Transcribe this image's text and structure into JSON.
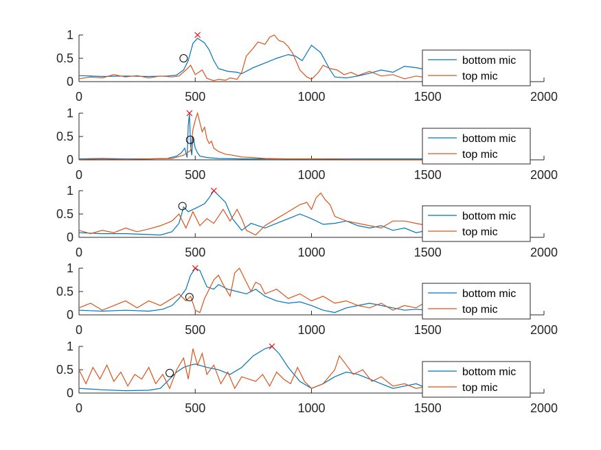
{
  "colors": {
    "bottom_mic": "#0072BD",
    "top_mic": "#D95319",
    "peak_marker": "#FF0000",
    "onset_marker": "#000000",
    "axis": "#262626"
  },
  "chart_data": [
    {
      "type": "line",
      "xlim": [
        0,
        2000
      ],
      "ylim": [
        0,
        1
      ],
      "xticks": [
        "0",
        "500",
        "1000",
        "1500",
        "2000"
      ],
      "yticks": [
        "0",
        "0.5",
        "1"
      ],
      "legend": "right",
      "series": [
        {
          "name": "bottom mic",
          "x": [
            0,
            100,
            200,
            300,
            380,
            420,
            450,
            470,
            490,
            510,
            540,
            560,
            580,
            600,
            640,
            680,
            700,
            750,
            800,
            850,
            900,
            930,
            960,
            1000,
            1040,
            1080,
            1100,
            1150,
            1200,
            1250,
            1300,
            1350,
            1400,
            1450,
            1500
          ],
          "y": [
            0.13,
            0.11,
            0.12,
            0.11,
            0.12,
            0.14,
            0.25,
            0.45,
            0.82,
            0.93,
            0.83,
            0.68,
            0.45,
            0.28,
            0.22,
            0.2,
            0.17,
            0.3,
            0.4,
            0.5,
            0.58,
            0.55,
            0.45,
            0.78,
            0.62,
            0.25,
            0.1,
            0.08,
            0.12,
            0.18,
            0.25,
            0.2,
            0.33,
            0.3,
            0.25
          ]
        },
        {
          "name": "top mic",
          "x": [
            0,
            50,
            100,
            150,
            200,
            250,
            300,
            350,
            400,
            430,
            460,
            480,
            500,
            530,
            550,
            580,
            600,
            630,
            650,
            680,
            700,
            720,
            750,
            770,
            800,
            820,
            840,
            860,
            880,
            900,
            920,
            950,
            980,
            1000,
            1030,
            1050,
            1080,
            1110,
            1140,
            1170,
            1200,
            1250,
            1300,
            1350,
            1400,
            1450,
            1500
          ],
          "y": [
            0.06,
            0.1,
            0.08,
            0.15,
            0.1,
            0.13,
            0.08,
            0.12,
            0.1,
            0.12,
            0.25,
            0.35,
            0.15,
            0.25,
            0.07,
            0.02,
            0.05,
            0.03,
            0.08,
            0.05,
            0.2,
            0.55,
            0.72,
            0.85,
            0.8,
            0.95,
            1.0,
            0.88,
            0.85,
            0.75,
            0.6,
            0.25,
            0.1,
            0.05,
            0.2,
            0.35,
            0.28,
            0.25,
            0.15,
            0.2,
            0.13,
            0.22,
            0.12,
            0.15,
            0.06,
            0.12,
            0.08
          ]
        }
      ],
      "peak": {
        "x": 510,
        "y": 1.0
      },
      "onset": {
        "x": 450,
        "y": 0.5
      }
    },
    {
      "type": "line",
      "xlim": [
        0,
        2000
      ],
      "ylim": [
        0,
        1
      ],
      "xticks": [
        "0",
        "500",
        "1000",
        "1500",
        "2000"
      ],
      "yticks": [
        "0",
        "0.5",
        "1"
      ],
      "legend": "right",
      "series": [
        {
          "name": "bottom mic",
          "x": [
            0,
            100,
            200,
            300,
            380,
            420,
            440,
            455,
            465,
            470,
            475,
            480,
            485,
            490,
            500,
            510,
            520,
            550,
            600,
            700,
            800,
            1000,
            1200,
            1500
          ],
          "y": [
            0.02,
            0.03,
            0.02,
            0.02,
            0.03,
            0.08,
            0.15,
            0.25,
            0.05,
            0.75,
            0.98,
            0.3,
            0.1,
            0.5,
            0.25,
            0.15,
            0.08,
            0.05,
            0.03,
            0.02,
            0.02,
            0.02,
            0.02,
            0.02
          ]
        },
        {
          "name": "top mic",
          "x": [
            0,
            100,
            200,
            300,
            400,
            450,
            480,
            490,
            500,
            510,
            520,
            530,
            540,
            550,
            560,
            570,
            580,
            600,
            630,
            660,
            700,
            750,
            800,
            900,
            1000,
            1200,
            1500
          ],
          "y": [
            0.01,
            0.02,
            0.01,
            0.02,
            0.03,
            0.1,
            0.2,
            0.65,
            0.85,
            1.0,
            0.8,
            0.6,
            0.7,
            0.45,
            0.35,
            0.4,
            0.25,
            0.18,
            0.12,
            0.1,
            0.06,
            0.05,
            0.03,
            0.02,
            0.02,
            0.01,
            0.01
          ]
        }
      ],
      "peak": {
        "x": 475,
        "y": 1.0
      },
      "onset": {
        "x": 478,
        "y": 0.43
      }
    },
    {
      "type": "line",
      "xlim": [
        0,
        2000
      ],
      "ylim": [
        0,
        1
      ],
      "xticks": [
        "0",
        "500",
        "1000",
        "1500",
        "2000"
      ],
      "yticks": [
        "0",
        "0.5",
        "1"
      ],
      "legend": "right",
      "series": [
        {
          "name": "bottom mic",
          "x": [
            0,
            100,
            200,
            300,
            350,
            400,
            430,
            450,
            470,
            500,
            540,
            560,
            580,
            600,
            630,
            660,
            700,
            740,
            800,
            850,
            900,
            950,
            1000,
            1050,
            1100,
            1150,
            1200,
            1250,
            1300,
            1350,
            1400,
            1450,
            1500
          ],
          "y": [
            0.1,
            0.08,
            0.08,
            0.06,
            0.05,
            0.12,
            0.3,
            0.65,
            0.55,
            0.62,
            0.72,
            0.85,
            1.0,
            0.9,
            0.75,
            0.4,
            0.15,
            0.3,
            0.2,
            0.3,
            0.4,
            0.5,
            0.4,
            0.28,
            0.3,
            0.35,
            0.25,
            0.2,
            0.25,
            0.15,
            0.2,
            0.1,
            0.15
          ]
        },
        {
          "name": "top mic",
          "x": [
            0,
            50,
            100,
            150,
            200,
            250,
            300,
            350,
            400,
            430,
            460,
            490,
            520,
            550,
            580,
            600,
            620,
            650,
            680,
            700,
            720,
            760,
            800,
            850,
            900,
            950,
            980,
            1000,
            1020,
            1040,
            1060,
            1080,
            1100,
            1150,
            1200,
            1250,
            1300,
            1350,
            1400,
            1450,
            1500
          ],
          "y": [
            0.15,
            0.08,
            0.15,
            0.1,
            0.2,
            0.12,
            0.18,
            0.25,
            0.35,
            0.5,
            0.2,
            0.55,
            0.25,
            0.4,
            0.3,
            0.45,
            0.6,
            0.35,
            0.6,
            0.4,
            0.15,
            0.05,
            0.25,
            0.4,
            0.55,
            0.7,
            0.75,
            0.6,
            0.85,
            0.95,
            0.8,
            0.7,
            0.45,
            0.35,
            0.3,
            0.25,
            0.2,
            0.35,
            0.35,
            0.3,
            0.25
          ]
        }
      ],
      "peak": {
        "x": 580,
        "y": 1.0
      },
      "onset": {
        "x": 445,
        "y": 0.67
      }
    },
    {
      "type": "line",
      "xlim": [
        0,
        2000
      ],
      "ylim": [
        0,
        1
      ],
      "xticks": [
        "0",
        "500",
        "1000",
        "1500",
        "2000"
      ],
      "yticks": [
        "0",
        "0.5",
        "1"
      ],
      "legend": "right",
      "series": [
        {
          "name": "bottom mic",
          "x": [
            0,
            100,
            200,
            300,
            360,
            400,
            430,
            460,
            480,
            500,
            520,
            550,
            580,
            600,
            640,
            680,
            720,
            760,
            800,
            850,
            900,
            950,
            1000,
            1050,
            1100,
            1150,
            1200,
            1250,
            1300,
            1350,
            1400,
            1450,
            1500
          ],
          "y": [
            0.1,
            0.08,
            0.1,
            0.08,
            0.12,
            0.2,
            0.35,
            0.55,
            0.85,
            1.0,
            0.95,
            0.6,
            0.55,
            0.65,
            0.55,
            0.5,
            0.45,
            0.55,
            0.4,
            0.3,
            0.25,
            0.28,
            0.2,
            0.1,
            0.05,
            0.15,
            0.2,
            0.25,
            0.2,
            0.15,
            0.1,
            0.12,
            0.1
          ]
        },
        {
          "name": "top mic",
          "x": [
            0,
            50,
            100,
            150,
            200,
            250,
            300,
            350,
            400,
            430,
            460,
            480,
            500,
            520,
            540,
            560,
            580,
            600,
            620,
            650,
            670,
            690,
            710,
            740,
            760,
            780,
            800,
            850,
            900,
            950,
            1000,
            1050,
            1100,
            1150,
            1200,
            1250,
            1300,
            1350,
            1400,
            1450,
            1500
          ],
          "y": [
            0.15,
            0.25,
            0.1,
            0.2,
            0.3,
            0.15,
            0.3,
            0.2,
            0.35,
            0.45,
            0.3,
            0.4,
            0.1,
            0.05,
            0.35,
            0.55,
            0.75,
            0.85,
            0.65,
            0.4,
            0.9,
            1.0,
            0.8,
            0.5,
            0.7,
            0.65,
            0.45,
            0.55,
            0.35,
            0.45,
            0.3,
            0.4,
            0.25,
            0.3,
            0.2,
            0.15,
            0.25,
            0.1,
            0.2,
            0.15,
            0.3
          ]
        }
      ],
      "peak": {
        "x": 500,
        "y": 1.0
      },
      "onset": {
        "x": 475,
        "y": 0.38
      }
    },
    {
      "type": "line",
      "xlim": [
        0,
        2000
      ],
      "ylim": [
        0,
        1
      ],
      "xticks": [
        "0",
        "500",
        "1000",
        "1500",
        "2000"
      ],
      "yticks": [
        "0",
        "0.5",
        "1"
      ],
      "legend": "right",
      "series": [
        {
          "name": "bottom mic",
          "x": [
            0,
            100,
            200,
            300,
            350,
            390,
            420,
            450,
            480,
            500,
            550,
            600,
            650,
            700,
            750,
            800,
            830,
            860,
            900,
            950,
            1000,
            1050,
            1100,
            1150,
            1200,
            1250,
            1300,
            1350,
            1400,
            1450,
            1500
          ],
          "y": [
            0.1,
            0.07,
            0.05,
            0.06,
            0.1,
            0.3,
            0.45,
            0.55,
            0.6,
            0.62,
            0.55,
            0.5,
            0.4,
            0.55,
            0.8,
            0.95,
            1.0,
            0.85,
            0.55,
            0.25,
            0.1,
            0.2,
            0.35,
            0.45,
            0.4,
            0.3,
            0.2,
            0.1,
            0.15,
            0.2,
            0.1
          ]
        },
        {
          "name": "top mic",
          "x": [
            0,
            30,
            60,
            90,
            120,
            150,
            180,
            210,
            240,
            270,
            300,
            330,
            360,
            390,
            420,
            450,
            470,
            490,
            510,
            530,
            550,
            580,
            610,
            640,
            670,
            700,
            730,
            760,
            790,
            820,
            850,
            880,
            910,
            940,
            970,
            1000,
            1050,
            1100,
            1120,
            1150,
            1180,
            1220,
            1260,
            1300,
            1350,
            1400,
            1450,
            1500
          ],
          "y": [
            0.5,
            0.2,
            0.55,
            0.3,
            0.6,
            0.25,
            0.45,
            0.15,
            0.4,
            0.3,
            0.55,
            0.2,
            0.4,
            0.1,
            0.5,
            0.75,
            0.3,
            0.95,
            0.6,
            0.85,
            0.4,
            0.6,
            0.2,
            0.45,
            0.1,
            0.35,
            0.3,
            0.25,
            0.4,
            0.15,
            0.45,
            0.3,
            0.2,
            0.55,
            0.25,
            0.1,
            0.2,
            0.5,
            0.8,
            0.6,
            0.4,
            0.5,
            0.25,
            0.35,
            0.15,
            0.2,
            0.1,
            0.15
          ]
        }
      ],
      "peak": {
        "x": 830,
        "y": 1.0
      },
      "onset": {
        "x": 390,
        "y": 0.43
      }
    }
  ]
}
